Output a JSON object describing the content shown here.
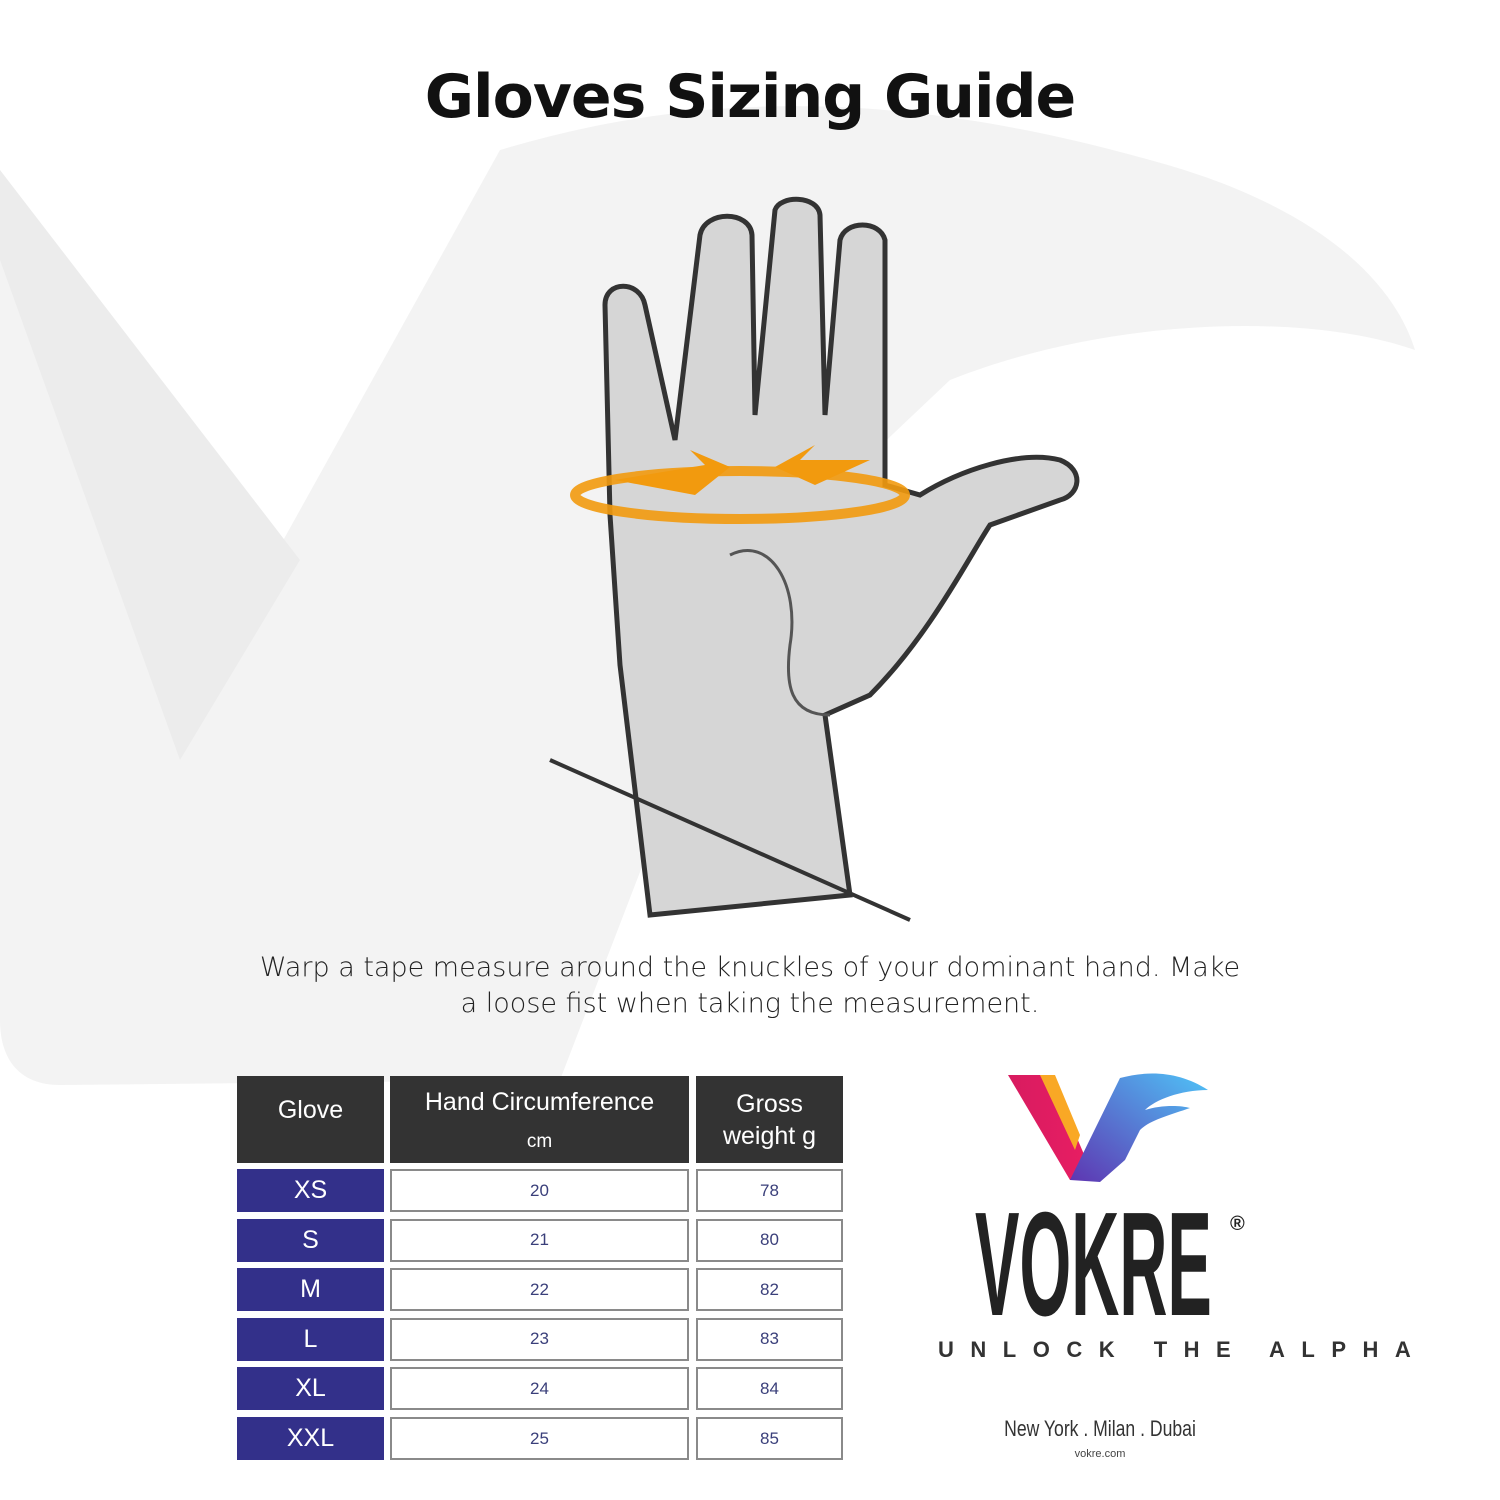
{
  "title": "Gloves Sizing Guide",
  "instructions": "Warp a tape measure around the knuckles of your dominant hand. Make a loose fist when taking the measurement.",
  "table": {
    "headers": {
      "glove": "Glove",
      "circumference": "Hand Circumference",
      "circumference_unit": "cm",
      "weight": "Gross weight g"
    },
    "rows": [
      {
        "size": "XS",
        "cm": "20",
        "g": "78"
      },
      {
        "size": "S",
        "cm": "21",
        "g": "80"
      },
      {
        "size": "M",
        "cm": "22",
        "g": "82"
      },
      {
        "size": "L",
        "cm": "23",
        "g": "83"
      },
      {
        "size": "XL",
        "cm": "24",
        "g": "84"
      },
      {
        "size": "XXL",
        "cm": "25",
        "g": "85"
      }
    ]
  },
  "brand": {
    "name": "VOKRE",
    "registered": "®",
    "tagline": "UNLOCK THE ALPHA",
    "cities": "New York . Milan . Dubai",
    "website": "vokre.com"
  },
  "colors": {
    "header": "#333333",
    "size_cell": "#33308a",
    "accent_arrow": "#f29a0e"
  }
}
